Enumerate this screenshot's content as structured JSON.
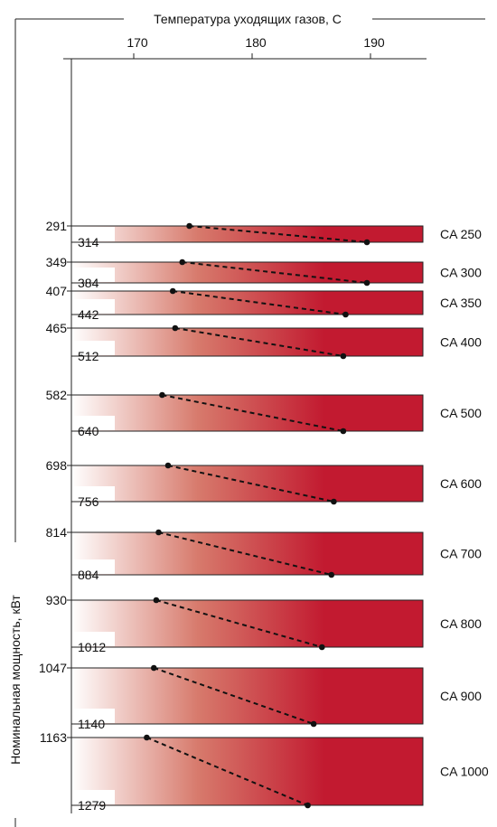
{
  "chart_data": {
    "type": "line",
    "title": "",
    "xlabel": "Температура уходящих газов, С",
    "ylabel": "Номинальная мощность, кВт",
    "x_ticks": [
      170,
      180,
      190
    ],
    "xlim": [
      164.5,
      194.5
    ],
    "gradient_colors": {
      "start": "#ffffff",
      "mid": "#d77a6c",
      "end": "#c21a30"
    },
    "series": [
      {
        "name": "CA 250",
        "p_min": 291,
        "p_max": 314,
        "t_min_power": 174.7,
        "t_max_power": 189.7
      },
      {
        "name": "CA 300",
        "p_min": 349,
        "p_max": 384,
        "t_min_power": 174.1,
        "t_max_power": 189.7
      },
      {
        "name": "CA 350",
        "p_min": 407,
        "p_max": 442,
        "t_min_power": 173.3,
        "t_max_power": 187.9
      },
      {
        "name": "CA 400",
        "p_min": 465,
        "p_max": 512,
        "t_min_power": 173.5,
        "t_max_power": 187.7
      },
      {
        "name": "CA 500",
        "p_min": 582,
        "p_max": 640,
        "t_min_power": 172.4,
        "t_max_power": 187.7
      },
      {
        "name": "CA 600",
        "p_min": 698,
        "p_max": 756,
        "t_min_power": 172.9,
        "t_max_power": 186.9
      },
      {
        "name": "CA 700",
        "p_min": 814,
        "p_max": 884,
        "t_min_power": 172.1,
        "t_max_power": 186.7
      },
      {
        "name": "CA 800",
        "p_min": 930,
        "p_max": 1012,
        "t_min_power": 171.9,
        "t_max_power": 185.9
      },
      {
        "name": "CA 900",
        "p_min": 1047,
        "p_max": 1140,
        "t_min_power": 171.7,
        "t_max_power": 185.2
      },
      {
        "name": "CA 1000",
        "p_min": 1163,
        "p_max": 1279,
        "t_min_power": 171.1,
        "t_max_power": 184.7
      }
    ]
  }
}
